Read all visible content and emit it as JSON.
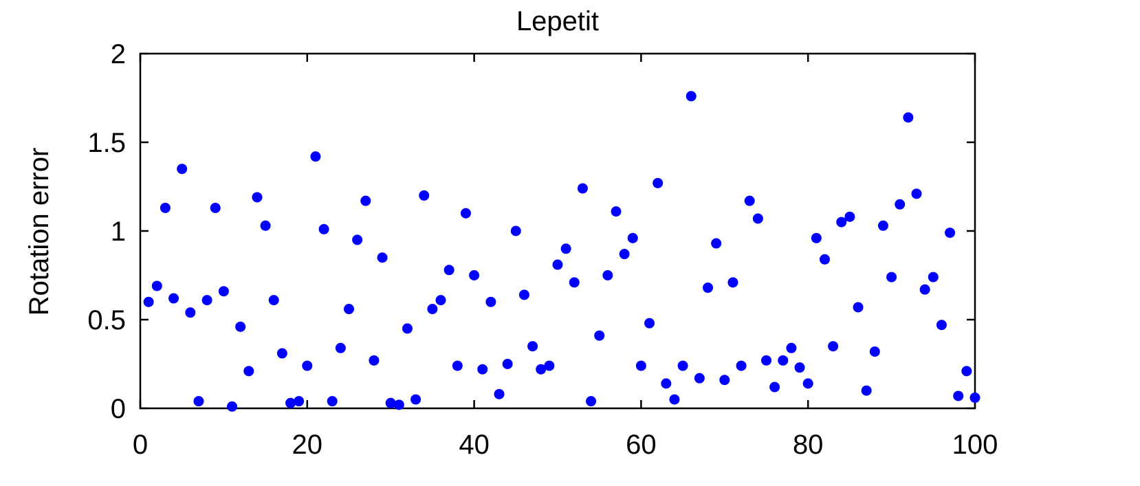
{
  "chart_data": {
    "type": "scatter",
    "title": "Lepetit",
    "xlabel": "",
    "ylabel": "Rotation error",
    "xlim": [
      0,
      100
    ],
    "ylim": [
      0,
      2
    ],
    "xticks": [
      "0",
      "20",
      "40",
      "60",
      "80",
      "100"
    ],
    "yticks": [
      "0",
      "0.5",
      "1",
      "1.5",
      "2"
    ],
    "grid": false,
    "marker_color": "#0000ff",
    "series": [
      {
        "x": [
          1,
          2,
          3,
          4,
          5,
          6,
          7,
          8,
          9,
          10,
          11,
          12,
          13,
          14,
          15,
          16,
          17,
          18,
          19,
          20,
          21,
          22,
          23,
          24,
          25,
          26,
          27,
          28,
          29,
          30,
          31,
          32,
          33,
          34,
          35,
          36,
          37,
          38,
          39,
          40,
          41,
          42,
          43,
          44,
          45,
          46,
          47,
          48,
          49,
          50,
          51,
          52,
          53,
          54,
          55,
          56,
          57,
          58,
          59,
          60,
          61,
          62,
          63,
          64,
          65,
          66,
          67,
          68,
          69,
          70,
          71,
          72,
          73,
          74,
          75,
          76,
          77,
          78,
          79,
          80,
          81,
          82,
          83,
          84,
          85,
          86,
          87,
          88,
          89,
          90,
          91,
          92,
          93,
          94,
          95,
          96,
          97,
          98,
          99,
          100
        ],
        "y": [
          0.6,
          0.69,
          1.13,
          0.62,
          1.35,
          0.54,
          0.04,
          0.61,
          1.13,
          0.66,
          0.01,
          0.46,
          0.21,
          1.19,
          1.03,
          0.61,
          0.31,
          0.03,
          0.04,
          0.24,
          1.42,
          1.01,
          0.04,
          0.34,
          0.56,
          0.95,
          1.17,
          0.27,
          0.85,
          0.03,
          0.02,
          0.45,
          0.05,
          1.2,
          0.56,
          0.61,
          0.78,
          0.24,
          1.1,
          0.75,
          0.22,
          0.6,
          0.08,
          0.25,
          1.0,
          0.64,
          0.35,
          0.22,
          0.24,
          0.81,
          0.9,
          0.71,
          1.24,
          0.04,
          0.41,
          0.75,
          1.11,
          0.87,
          0.96,
          0.24,
          0.48,
          1.27,
          0.14,
          0.05,
          0.24,
          1.76,
          0.17,
          0.68,
          0.93,
          0.16,
          0.71,
          0.24,
          1.17,
          1.07,
          0.27,
          0.12,
          0.27,
          0.34,
          0.23,
          0.14,
          0.96,
          0.84,
          0.35,
          1.05,
          1.08,
          0.57,
          0.1,
          0.32,
          1.03,
          0.74,
          1.15,
          1.64,
          1.21,
          0.67,
          0.74,
          0.47,
          0.99,
          0.07,
          0.21,
          0.06
        ]
      }
    ]
  }
}
